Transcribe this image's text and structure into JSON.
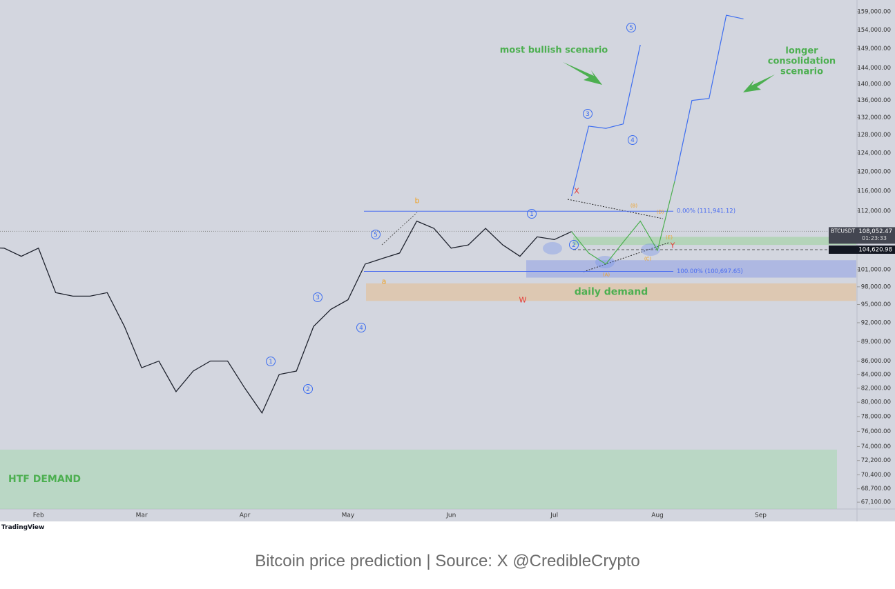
{
  "chart_data": {
    "type": "line",
    "symbol": "BTCUSDT",
    "countdown": "01:23:33",
    "log_scale": true,
    "categories": [
      null,
      null,
      null,
      "Feb",
      null,
      null,
      null,
      null,
      null,
      "Mar",
      null,
      null,
      null,
      null,
      null,
      "Apr",
      null,
      null,
      null,
      null,
      null,
      "May",
      null,
      null,
      null,
      null,
      null,
      "Jun",
      null,
      null,
      null,
      null,
      null,
      "Jul",
      null,
      null,
      null,
      null,
      null,
      "Aug",
      null,
      null,
      null,
      null,
      null,
      "Sep",
      null,
      null,
      null,
      null,
      null
    ],
    "series": [
      {
        "color": "#1e222d",
        "values": [
          105000,
          104900,
          103400,
          104900,
          97000,
          96400,
          96400,
          97000,
          91400,
          85000,
          86000,
          81500,
          84500,
          86000,
          86000,
          82000,
          78500,
          84000,
          84500,
          91400,
          94200,
          95800,
          102000,
          103000,
          104000,
          110000,
          108600,
          104900,
          105500,
          108600,
          105500,
          103400,
          107000,
          106500,
          108000,
          null,
          null,
          null,
          null,
          null,
          null,
          null,
          null,
          null,
          null,
          null,
          null,
          null,
          null,
          null,
          null
        ]
      },
      {
        "color": "#3c6df0",
        "values": [
          null,
          null,
          null,
          null,
          null,
          null,
          null,
          null,
          null,
          null,
          null,
          null,
          null,
          null,
          null,
          null,
          null,
          null,
          null,
          null,
          null,
          null,
          null,
          null,
          null,
          null,
          null,
          null,
          null,
          null,
          null,
          null,
          null,
          null,
          115000,
          130000,
          129500,
          130500,
          150000,
          null,
          null,
          null,
          null,
          null,
          null,
          null,
          null,
          null,
          null,
          null,
          null
        ]
      },
      {
        "color": "#4caf50",
        "values": [
          null,
          null,
          null,
          null,
          null,
          null,
          null,
          null,
          null,
          null,
          null,
          null,
          null,
          null,
          null,
          null,
          null,
          null,
          null,
          null,
          null,
          null,
          null,
          null,
          null,
          null,
          null,
          null,
          null,
          null,
          null,
          null,
          null,
          null,
          108000,
          104000,
          102000,
          106000,
          110000,
          104500,
          118000,
          null,
          null,
          null,
          null,
          null,
          null,
          null,
          null,
          null,
          null
        ]
      },
      {
        "color": "#3c6df0",
        "values": [
          null,
          null,
          null,
          null,
          null,
          null,
          null,
          null,
          null,
          null,
          null,
          null,
          null,
          null,
          null,
          null,
          null,
          null,
          null,
          null,
          null,
          null,
          null,
          null,
          null,
          null,
          null,
          null,
          null,
          null,
          null,
          null,
          null,
          null,
          null,
          null,
          null,
          null,
          null,
          null,
          118000,
          136000,
          136500,
          158000,
          157000,
          null,
          null,
          null,
          null,
          null,
          null
        ]
      }
    ],
    "ylim": [
      66300,
      162300
    ],
    "yticks": [
      {
        "value": 159000,
        "label": "159,000.00"
      },
      {
        "value": 154000,
        "label": "154,000.00"
      },
      {
        "value": 149000,
        "label": "149,000.00"
      },
      {
        "value": 144000,
        "label": "144,000.00"
      },
      {
        "value": 140000,
        "label": "140,000.00"
      },
      {
        "value": 136000,
        "label": "136,000.00"
      },
      {
        "value": 132000,
        "label": "132,000.00"
      },
      {
        "value": 128000,
        "label": "128,000.00"
      },
      {
        "value": 124000,
        "label": "124,000.00"
      },
      {
        "value": 120000,
        "label": "120,000.00"
      },
      {
        "value": 116000,
        "label": "116,000.00"
      },
      {
        "value": 112000,
        "label": "112,000.00"
      },
      {
        "value": 101000,
        "label": "101,000.00"
      },
      {
        "value": 98000,
        "label": "98,000.00"
      },
      {
        "value": 95000,
        "label": "95,000.00"
      },
      {
        "value": 92000,
        "label": "92,000.00"
      },
      {
        "value": 89000,
        "label": "89,000.00"
      },
      {
        "value": 86000,
        "label": "86,000.00"
      },
      {
        "value": 84000,
        "label": "84,000.00"
      },
      {
        "value": 82000,
        "label": "82,000.00"
      },
      {
        "value": 80000,
        "label": "80,000.00"
      },
      {
        "value": 78000,
        "label": "78,000.00"
      },
      {
        "value": 76000,
        "label": "76,000.00"
      },
      {
        "value": 74000,
        "label": "74,000.00"
      },
      {
        "value": 72200,
        "label": "72,200.00"
      },
      {
        "value": 70400,
        "label": "70,400.00"
      },
      {
        "value": 68700,
        "label": "68,700.00"
      },
      {
        "value": 67100,
        "label": "67,100.00"
      }
    ],
    "levels": [
      {
        "value": 111941.12,
        "label": "0.00% (111,941.12)",
        "color": "#4a6cf0"
      },
      {
        "value": 100697.65,
        "label": "100.00% (100,697.65)",
        "color": "#4a6cf0"
      }
    ],
    "price_tags": [
      {
        "value": 108052.47,
        "label": "108,052.47",
        "color": "#434651"
      },
      {
        "value": 104620.98,
        "label": "104,620.98",
        "color": "#131722"
      }
    ],
    "zones": [
      {
        "name": "HTF DEMAND",
        "range": [
          66300,
          73600
        ],
        "color": "rgba(170,215,180,0.6)"
      },
      {
        "name": "daily demand",
        "range": [
          95600,
          98600
        ],
        "color": "rgba(230,190,140,0.55)"
      },
      {
        "range": [
          99600,
          102700
        ],
        "color": "rgba(120,140,230,0.4)"
      },
      {
        "range": [
          105500,
          107000
        ],
        "color": "rgba(160,210,160,0.6)"
      }
    ],
    "wave_labels": [
      {
        "text": "5",
        "color": "#3c6df0",
        "circled": true
      },
      {
        "text": "3",
        "color": "#3c6df0",
        "circled": true
      },
      {
        "text": "4",
        "color": "#3c6df0",
        "circled": true
      },
      {
        "text": "1",
        "color": "#3c6df0",
        "circled": true
      },
      {
        "text": "2",
        "color": "#3c6df0",
        "circled": true
      },
      {
        "text": "1",
        "color": "#3c6df0",
        "circled": true
      },
      {
        "text": "2",
        "color": "#3c6df0",
        "circled": true
      },
      {
        "text": "3",
        "color": "#3c6df0",
        "circled": true
      },
      {
        "text": "4",
        "color": "#3c6df0",
        "circled": true
      },
      {
        "text": "5",
        "color": "#3c6df0",
        "circled": true
      },
      {
        "text": "b",
        "color": "#f0a020",
        "circled": false
      },
      {
        "text": "a",
        "color": "#f0a020",
        "circled": false
      },
      {
        "text": "X",
        "color": "#e53935",
        "circled": false
      },
      {
        "text": "W",
        "color": "#e53935",
        "circled": false
      },
      {
        "text": "Y",
        "color": "#e53935",
        "circled": false
      },
      {
        "text": "(A)",
        "color": "#f0a020",
        "circled": false
      },
      {
        "text": "(B)",
        "color": "#f0a020",
        "circled": false
      },
      {
        "text": "(C)",
        "color": "#f0a020",
        "circled": false
      },
      {
        "text": "(D)",
        "color": "#f0a020",
        "circled": false
      },
      {
        "text": "(E)",
        "color": "#f0a020",
        "circled": false
      }
    ],
    "annotations": [
      {
        "text": "most bullish scenario",
        "color": "#4caf50"
      },
      {
        "text": "longer consolidation scenario",
        "color": "#4caf50"
      }
    ]
  },
  "branding": "TradingView",
  "caption": "Bitcoin price prediction | Source: X @CredibleCrypto"
}
